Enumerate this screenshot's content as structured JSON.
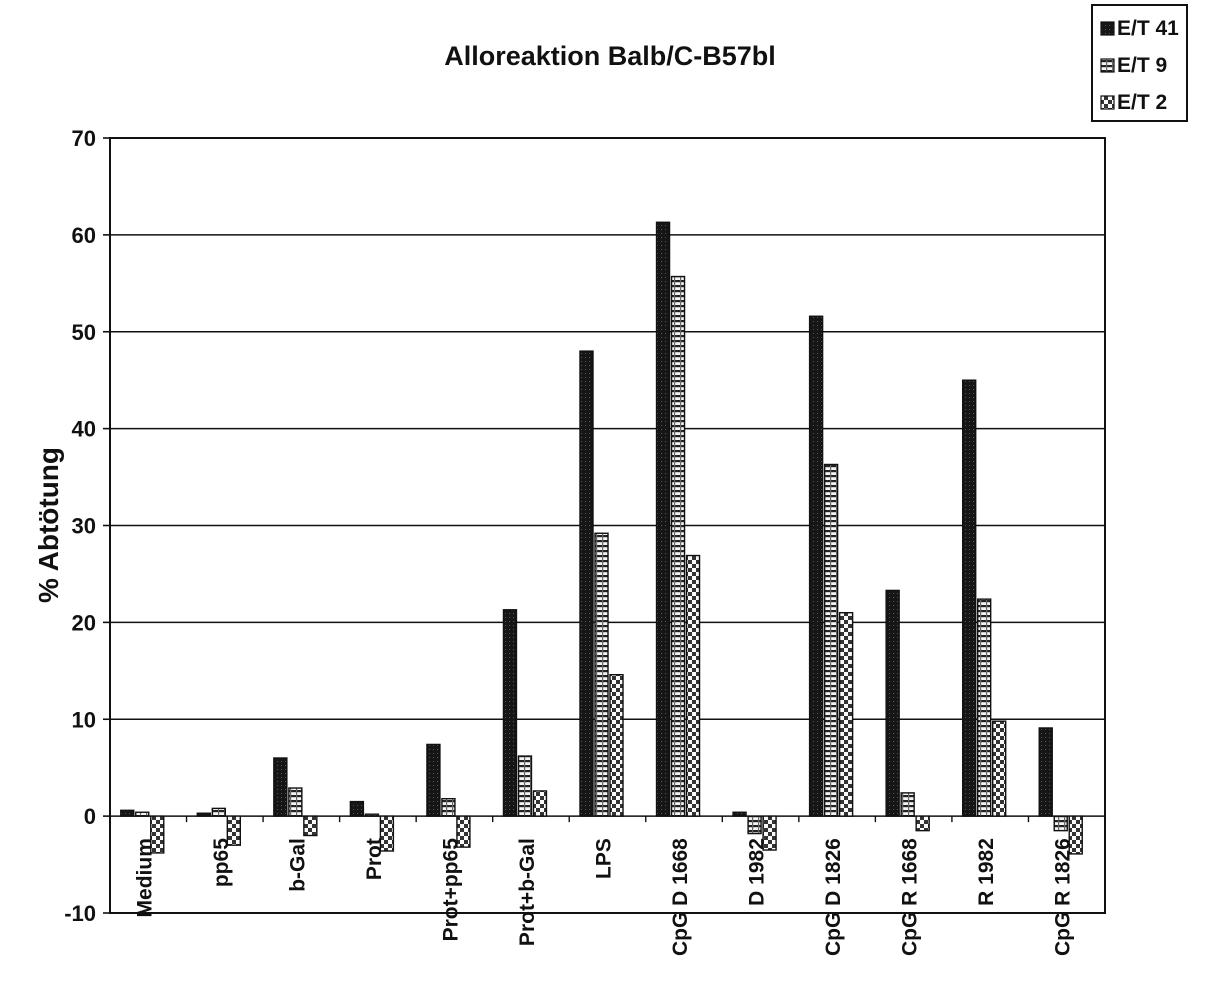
{
  "chart_data": {
    "type": "bar",
    "title": "Alloreaktion Balb/C-B57bl",
    "xlabel": "",
    "ylabel": "% Abtötung",
    "ylim": [
      -10,
      70
    ],
    "yticks": [
      "70",
      "60",
      "50",
      "40",
      "30",
      "20",
      "10",
      "0",
      "-10"
    ],
    "grid": true,
    "legend_position": "top-right",
    "categories": [
      "Medium",
      "pp65",
      "b-Gal",
      "Prot",
      "Prot+pp65",
      "Prot+b-Gal",
      "LPS",
      "CpG D 1668",
      "D 1982",
      "CpG D 1826",
      "CpG R 1668",
      "R 1982",
      "CpG R 1826"
    ],
    "series": [
      {
        "name": "E/T 41",
        "values": [
          0.6,
          0.3,
          6.0,
          1.5,
          7.4,
          21.3,
          48.0,
          61.3,
          0.4,
          51.6,
          23.3,
          45.0,
          9.1
        ]
      },
      {
        "name": "E/T 9",
        "values": [
          0.4,
          0.8,
          2.9,
          0.2,
          1.8,
          6.2,
          29.2,
          55.7,
          -1.8,
          36.3,
          2.4,
          22.4,
          -1.5
        ]
      },
      {
        "name": "E/T 2",
        "values": [
          -3.8,
          -3.0,
          -2.0,
          -3.6,
          -3.2,
          2.6,
          14.6,
          26.9,
          -3.5,
          21.0,
          -1.5,
          9.8,
          -3.9
        ]
      }
    ],
    "colors": {
      "series1": "#1c1c1c",
      "series2": "#c9c9c9",
      "series3": "#e6e6e6"
    }
  }
}
